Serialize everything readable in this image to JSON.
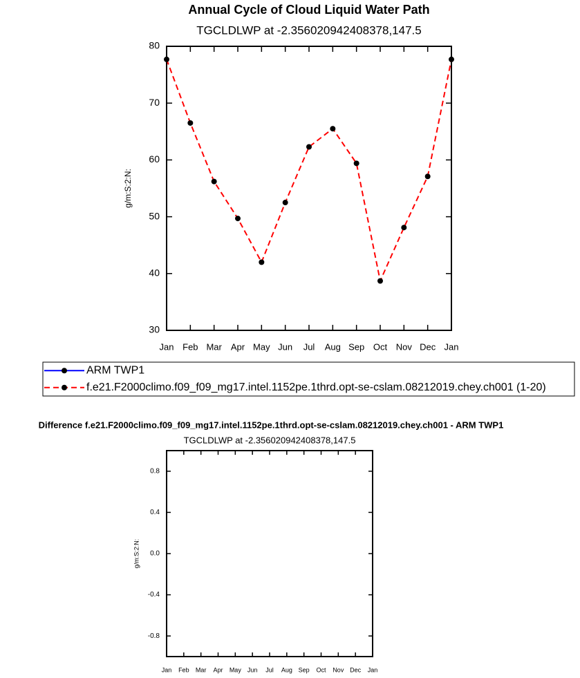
{
  "chart_data": [
    {
      "type": "line",
      "title": "Annual Cycle of Cloud Liquid Water Path",
      "subtitle": "TGCLDLWP at -2.356020942408378,147.5",
      "y_label": "g/m:S:2:N:",
      "categories": [
        "Jan",
        "Feb",
        "Mar",
        "Apr",
        "May",
        "Jun",
        "Jul",
        "Aug",
        "Sep",
        "Oct",
        "Nov",
        "Dec",
        "Jan"
      ],
      "series": [
        {
          "name": "ARM TWP1",
          "color": "#0000ff",
          "linestyle": "solid",
          "values": [
            null,
            null,
            null,
            null,
            null,
            null,
            null,
            null,
            null,
            null,
            null,
            null,
            null
          ]
        },
        {
          "name": "f.e21.F2000climo.f09_f09_mg17.intel.1152pe.1thrd.opt-se-cslam.08212019.chey.ch001 (1-20)",
          "color": "#ff0000",
          "linestyle": "dashed",
          "values": [
            77.7,
            66.5,
            56.2,
            49.7,
            42.0,
            52.5,
            62.3,
            65.5,
            59.4,
            38.7,
            48.1,
            57.1,
            77.7
          ]
        }
      ],
      "ylim": [
        30,
        80
      ],
      "yticks": [
        30,
        40,
        50,
        60,
        70,
        80
      ],
      "legend_position": "bottom"
    },
    {
      "type": "line",
      "title": "Difference f.e21.F2000climo.f09_f09_mg17.intel.1152pe.1thrd.opt-se-cslam.08212019.chey.ch001 - ARM TWP1",
      "subtitle": "TGCLDLWP at -2.356020942408378,147.5",
      "y_label": "g/m:S:2:N:",
      "categories": [
        "Jan",
        "Feb",
        "Mar",
        "Apr",
        "May",
        "Jun",
        "Jul",
        "Aug",
        "Sep",
        "Oct",
        "Nov",
        "Dec",
        "Jan"
      ],
      "series": [],
      "ylim": [
        -1,
        1
      ],
      "yticks": [
        -0.8,
        -0.4,
        {
          "value": 0,
          "label": "0.0"
        },
        0.4,
        0.8
      ]
    }
  ]
}
